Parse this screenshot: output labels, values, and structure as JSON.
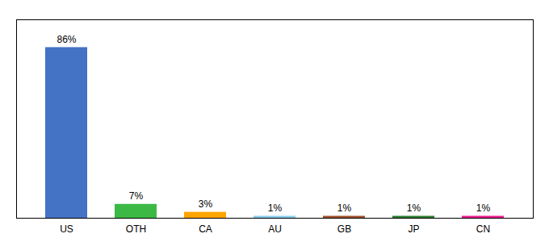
{
  "chart_data": {
    "type": "bar",
    "categories": [
      "US",
      "OTH",
      "CA",
      "AU",
      "GB",
      "JP",
      "CN"
    ],
    "values": [
      86,
      7,
      3,
      1,
      1,
      1,
      1
    ],
    "value_labels": [
      "86%",
      "7%",
      "3%",
      "1%",
      "1%",
      "1%",
      "1%"
    ],
    "colors": [
      "#4472C4",
      "#3CB944",
      "#FFA500",
      "#87CEEB",
      "#A0522D",
      "#2E7D32",
      "#E91E8C"
    ],
    "ylim": [
      0,
      100
    ],
    "tick_labels": "x",
    "data_labels": true,
    "grid": false
  }
}
